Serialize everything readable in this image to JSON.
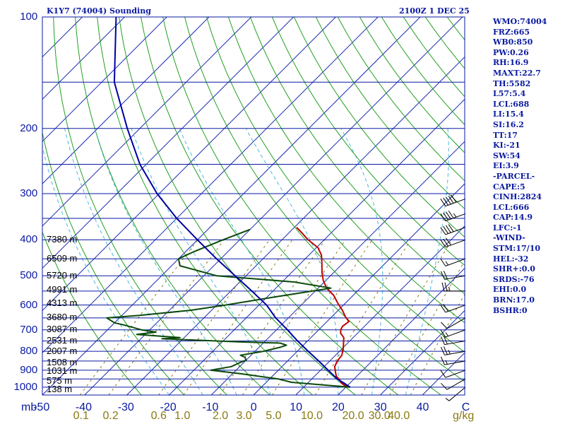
{
  "header": {
    "title": "K1Y7 (74004) Sounding",
    "time": "2100Z  1 DEC 25"
  },
  "indices": [
    "WMO:74004",
    "FRZ:665",
    "WB0:850",
    "PW:0.26",
    "RH:16.9",
    "MAXT:22.7",
    "TH:5582",
    "L57:5.4",
    "LCL:688",
    "LI:15.4",
    "SI:16.2",
    "TT:17",
    "KI:-21",
    "SW:54",
    "EI:3.9",
    "-PARCEL-",
    "CAPE:5",
    "CINH:2824",
    "LCL:666",
    "CAP:14.9",
    "LFC:-1",
    "-WIND-",
    "STM:17/10",
    "HEL:-32",
    "SHR+:0.0",
    "SRDS:-76",
    "EHI:0.0",
    "BRN:17.0",
    "BSHR:0"
  ],
  "colors": {
    "axis": "#0a1aa0",
    "isobar": "#0a1aa0",
    "isotherm": "#1a2ab0",
    "dry_adiabat": "#22a022",
    "moist_adiabat": "#4ab8e0",
    "mixing_ratio": "#8a7a10",
    "temperature": "#c00000",
    "dewpoint": "#0a4a0a",
    "parcel": "#0000a0",
    "wind": "#000000"
  },
  "chart_data": {
    "type": "line",
    "title": "K1Y7 (74004) Sounding",
    "diagram": "skew-T log-P",
    "yaxis": {
      "label": "mb",
      "scale": "log",
      "range": [
        1050,
        100
      ],
      "ticks": [
        100,
        200,
        300,
        400,
        500,
        600,
        700,
        800,
        900,
        1000
      ]
    },
    "xaxis": {
      "label": "C",
      "range": [
        -50,
        50
      ],
      "ticks": [
        -50,
        -40,
        -30,
        -20,
        -10,
        0,
        10,
        20,
        30,
        40,
        50
      ],
      "tick_labels": [
        "-50",
        "-40",
        "-30",
        "-20",
        "-10",
        "0",
        "10",
        "20",
        "30",
        "40",
        "C"
      ]
    },
    "mixing_ratio_axis": {
      "label": "g/kg",
      "ticks": [
        {
          "label": "0.1",
          "t": -40.6
        },
        {
          "label": "0.2",
          "t": -33.6
        },
        {
          "label": "0.6",
          "t": -22.2
        },
        {
          "label": "1.0",
          "t": -16.6
        },
        {
          "label": "2.0",
          "t": -7.6
        },
        {
          "label": "3.0",
          "t": -2.0
        },
        {
          "label": "5.0",
          "t": 5.0
        },
        {
          "label": "10.0",
          "t": 14.0
        },
        {
          "label": "20.0",
          "t": 23.8
        },
        {
          "label": "30.0",
          "t": 30.0
        },
        {
          "label": "40.0",
          "t": 34.6
        }
      ]
    },
    "height_labels": [
      {
        "p": 1013,
        "text": "138 m"
      },
      {
        "p": 963,
        "text": "575 m"
      },
      {
        "p": 906,
        "text": "1031 m"
      },
      {
        "p": 857,
        "text": "1508 m"
      },
      {
        "p": 801,
        "text": "2007 m"
      },
      {
        "p": 747,
        "text": "2531 m"
      },
      {
        "p": 698,
        "text": "3087 m"
      },
      {
        "p": 648,
        "text": "3680 m"
      },
      {
        "p": 594,
        "text": "4313 m"
      },
      {
        "p": 546,
        "text": "4991 m"
      },
      {
        "p": 500,
        "text": "5720 m"
      },
      {
        "p": 449,
        "text": "6509 m"
      },
      {
        "p": 400,
        "text": "7380 m"
      }
    ],
    "series": [
      {
        "name": "Temperature",
        "points": [
          [
            1000,
            21.0
          ],
          [
            990,
            19.5
          ],
          [
            975,
            18.0
          ],
          [
            955,
            16.8
          ],
          [
            935,
            15.2
          ],
          [
            915,
            14.2
          ],
          [
            880,
            12.5
          ],
          [
            850,
            11.8
          ],
          [
            820,
            11.5
          ],
          [
            790,
            10.4
          ],
          [
            760,
            9.0
          ],
          [
            735,
            7.8
          ],
          [
            715,
            6.0
          ],
          [
            700,
            5.2
          ],
          [
            685,
            4.8
          ],
          [
            665,
            5.2
          ],
          [
            645,
            3.2
          ],
          [
            620,
            1.0
          ],
          [
            595,
            -1.6
          ],
          [
            565,
            -4.6
          ],
          [
            540,
            -8.0
          ],
          [
            515,
            -10.6
          ],
          [
            490,
            -12.8
          ],
          [
            465,
            -14.8
          ],
          [
            440,
            -17.0
          ],
          [
            420,
            -19.6
          ],
          [
            400,
            -23.8
          ],
          [
            380,
            -27.5
          ],
          [
            370,
            -29.5
          ]
        ]
      },
      {
        "name": "Dewpoint",
        "points": [
          [
            1000,
            21.0
          ],
          [
            990,
            16.0
          ],
          [
            970,
            6.0
          ],
          [
            950,
            2.0
          ],
          [
            920,
            -8.0
          ],
          [
            900,
            -16.0
          ],
          [
            880,
            -12.0
          ],
          [
            860,
            -11.0
          ],
          [
            845,
            -10.0
          ],
          [
            830,
            -11.0
          ],
          [
            820,
            -12.5
          ],
          [
            800,
            -8.0
          ],
          [
            780,
            -5.0
          ],
          [
            770,
            -4.0
          ],
          [
            760,
            -6.0
          ],
          [
            755,
            -15.0
          ],
          [
            740,
            -35.0
          ],
          [
            735,
            -31.0
          ],
          [
            720,
            -42.0
          ],
          [
            710,
            -38.0
          ],
          [
            700,
            -42.0
          ],
          [
            680,
            -47.0
          ],
          [
            670,
            -50.0
          ],
          [
            650,
            -53.0
          ],
          [
            640,
            -46.0
          ],
          [
            620,
            -35.0
          ],
          [
            600,
            -28.0
          ],
          [
            570,
            -18.0
          ],
          [
            540,
            -7.0
          ],
          [
            520,
            -17.0
          ],
          [
            500,
            -37.0
          ],
          [
            470,
            -48.0
          ],
          [
            450,
            -50.0
          ],
          [
            430,
            -48.0
          ],
          [
            400,
            -44.0
          ],
          [
            375,
            -40.0
          ]
        ]
      },
      {
        "name": "Parcel",
        "points": [
          [
            1000,
            21.0
          ],
          [
            975,
            18.6
          ],
          [
            950,
            16.0
          ],
          [
            900,
            11.8
          ],
          [
            850,
            7.4
          ],
          [
            800,
            2.6
          ],
          [
            750,
            -2.4
          ],
          [
            700,
            -7.4
          ],
          [
            650,
            -13.0
          ],
          [
            600,
            -18.2
          ],
          [
            550,
            -25.0
          ],
          [
            500,
            -32.6
          ],
          [
            450,
            -41.0
          ],
          [
            400,
            -50.0
          ],
          [
            350,
            -60.0
          ],
          [
            300,
            -70.5
          ],
          [
            250,
            -81.5
          ],
          [
            200,
            -93.0
          ],
          [
            150,
            -107.0
          ],
          [
            100,
            -122.0
          ]
        ]
      }
    ],
    "wind_barbs": [
      {
        "p": 1000,
        "dir": 230,
        "spd": 5
      },
      {
        "p": 950,
        "dir": 240,
        "spd": 10
      },
      {
        "p": 900,
        "dir": 250,
        "spd": 10
      },
      {
        "p": 850,
        "dir": 260,
        "spd": 15
      },
      {
        "p": 800,
        "dir": 260,
        "spd": 25
      },
      {
        "p": 750,
        "dir": 260,
        "spd": 20
      },
      {
        "p": 700,
        "dir": 250,
        "spd": 15
      },
      {
        "p": 650,
        "dir": 240,
        "spd": 10
      },
      {
        "p": 600,
        "dir": 250,
        "spd": 20
      },
      {
        "p": 550,
        "dir": 270,
        "spd": 25
      },
      {
        "p": 500,
        "dir": 260,
        "spd": 20
      },
      {
        "p": 450,
        "dir": 250,
        "spd": 15
      },
      {
        "p": 400,
        "dir": 250,
        "spd": 30
      },
      {
        "p": 370,
        "dir": 250,
        "spd": 40
      },
      {
        "p": 340,
        "dir": 250,
        "spd": 45
      },
      {
        "p": 310,
        "dir": 250,
        "spd": 50
      }
    ]
  }
}
